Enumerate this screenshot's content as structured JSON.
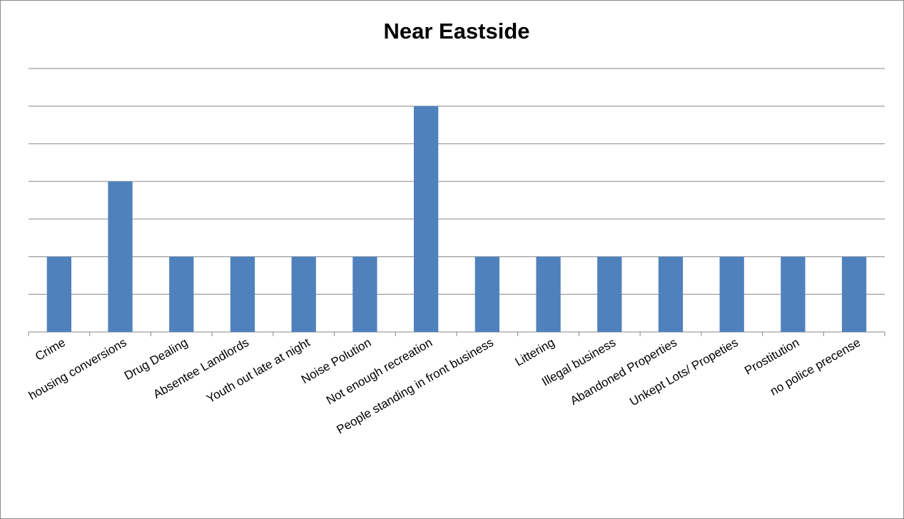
{
  "chart_data": {
    "type": "bar",
    "title": "Near Eastside",
    "xlabel": "",
    "ylabel": "",
    "ylim": [
      0,
      3.5
    ],
    "y_gridlines": [
      0,
      0.5,
      1,
      1.5,
      2,
      2.5,
      3,
      3.5
    ],
    "y_tick_labels_shown": false,
    "legend": "none",
    "bar_color": "#4f81bd",
    "categories": [
      "Crime",
      "housing conversions",
      "Drug Dealing",
      "Absentee Landlords",
      "Youth out late at night",
      "Noise Polution",
      "Not enough recreation",
      "People standing in front business",
      "Littering",
      "Illegal business",
      "Abandoned Properties",
      "Unkept Lots/ Propeties",
      "Prostitution",
      "no police precense"
    ],
    "values": [
      1,
      2,
      1,
      1,
      1,
      1,
      3,
      1,
      1,
      1,
      1,
      1,
      1,
      1
    ]
  }
}
